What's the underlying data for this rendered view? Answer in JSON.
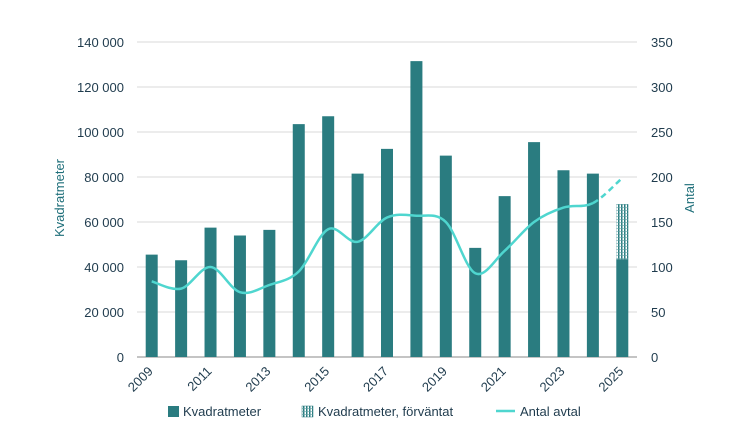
{
  "chart_data": {
    "type": "bar",
    "x": [
      "2009",
      "2010",
      "2011",
      "2012",
      "2013",
      "2014",
      "2015",
      "2016",
      "2017",
      "2018",
      "2019",
      "2020",
      "2021",
      "2022",
      "2023",
      "2024",
      "2025"
    ],
    "x_tick_labels": [
      "2009",
      "2011",
      "2013",
      "2015",
      "2017",
      "2019",
      "2021",
      "2023",
      "2025"
    ],
    "series": [
      {
        "name": "Kvadratmeter",
        "type": "bar",
        "axis": "left",
        "color": "#2a7c80",
        "values": [
          45500,
          43000,
          57500,
          54000,
          56500,
          103500,
          107000,
          81500,
          92500,
          131500,
          89500,
          48500,
          71500,
          95500,
          83000,
          81500,
          43500
        ]
      },
      {
        "name": "Kvadratmeter, förväntat",
        "type": "bar-stacked-hatched",
        "axis": "left",
        "color": "#2a7c80",
        "values": [
          0,
          0,
          0,
          0,
          0,
          0,
          0,
          0,
          0,
          0,
          0,
          0,
          0,
          0,
          0,
          0,
          24500
        ]
      },
      {
        "name": "Antal avtal",
        "type": "line",
        "axis": "right",
        "color": "#4fd6cf",
        "values": [
          84,
          76,
          100,
          72,
          80,
          95,
          142,
          128,
          155,
          157,
          150,
          93,
          118,
          150,
          166,
          171,
          199
        ],
        "dashed_from_index": 15
      }
    ],
    "y_left": {
      "label": "Kvadratmeter",
      "ylim": [
        0,
        140000
      ],
      "ticks": [
        0,
        20000,
        40000,
        60000,
        80000,
        100000,
        120000,
        140000
      ],
      "tick_labels": [
        "0",
        "20 000",
        "40 000",
        "60 000",
        "80 000",
        "100 000",
        "120 000",
        "140 000"
      ]
    },
    "y_right": {
      "label": "Antal",
      "ylim": [
        0,
        350
      ],
      "ticks": [
        0,
        50,
        100,
        150,
        200,
        250,
        300,
        350
      ],
      "tick_labels": [
        "0",
        "50",
        "100",
        "150",
        "200",
        "250",
        "300",
        "350"
      ]
    },
    "grid": true,
    "legend_position": "bottom"
  }
}
